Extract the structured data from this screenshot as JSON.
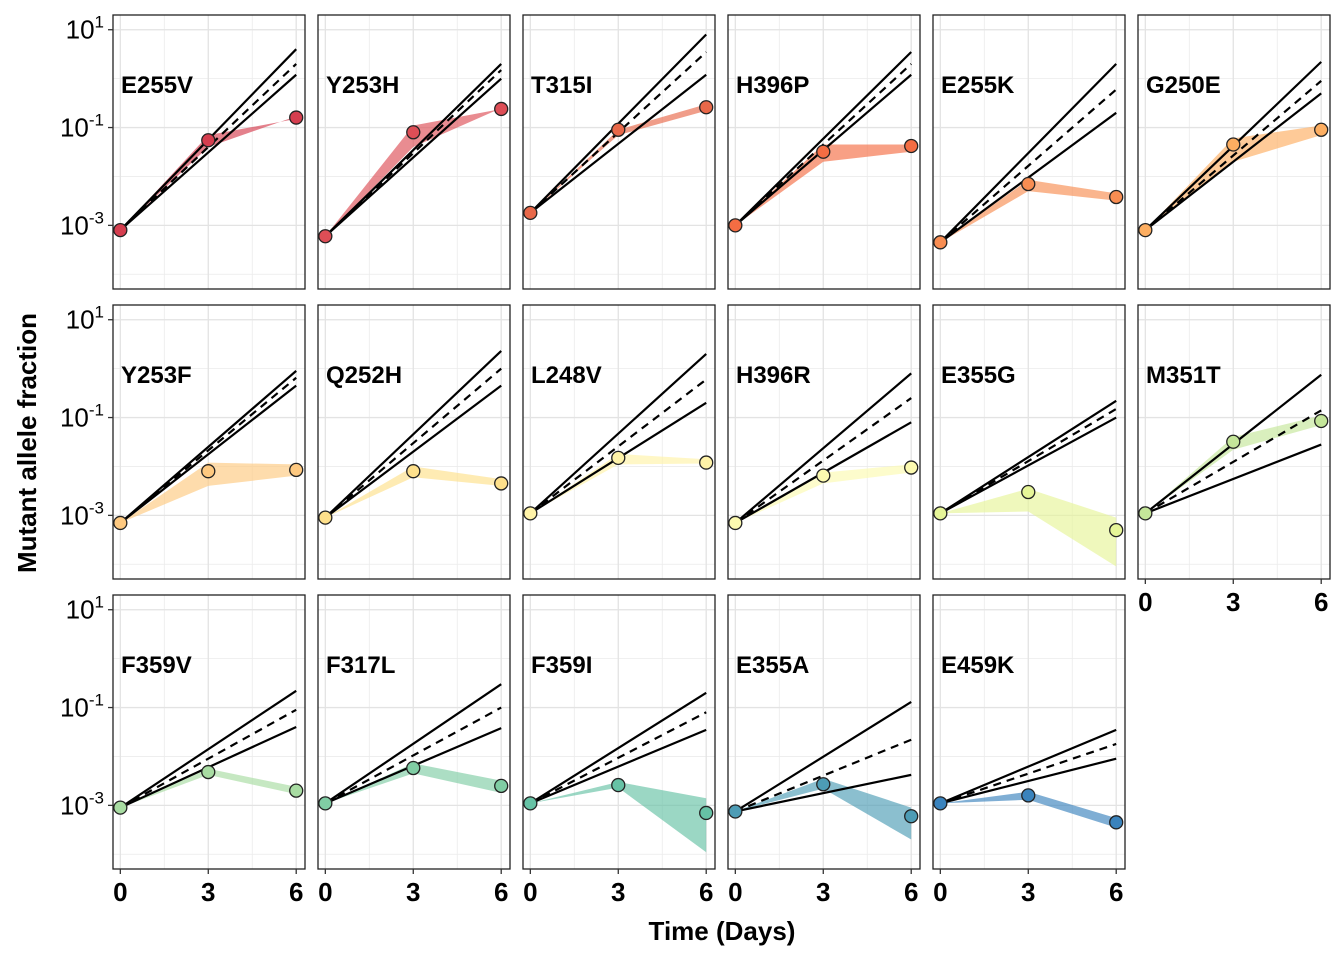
{
  "figure": {
    "ylabel": "Mutant allele fraction",
    "xlabel": "Time (Days)"
  },
  "chart_data": {
    "type": "line",
    "facet": true,
    "x_ticks": [
      0,
      3,
      6
    ],
    "y_scale": "log10",
    "y_ticks": [
      {
        "value": 0.001,
        "base": "10",
        "exp": "-3"
      },
      {
        "value": 0.1,
        "base": "10",
        "exp": "-1"
      },
      {
        "value": 10,
        "base": "10",
        "exp": "1"
      }
    ],
    "ylim": [
      5e-05,
      20
    ],
    "xlim": [
      -0.25,
      6.3
    ],
    "grid": true,
    "legend": "none",
    "panels": [
      {
        "name": "E255V",
        "color": "#d53e4f",
        "points": [
          [
            0,
            0.0008
          ],
          [
            3,
            0.055
          ],
          [
            6,
            0.16
          ]
        ],
        "band_low": [
          0.0008,
          0.04,
          0.17
        ],
        "band_high": [
          0.0008,
          0.07,
          0.15
        ],
        "lines": {
          "upper": [
            0.0008,
            4.0
          ],
          "dashed": [
            0.0008,
            2.0
          ],
          "lower": [
            0.0008,
            1.2
          ]
        }
      },
      {
        "name": "Y253H",
        "color": "#dd4e56",
        "points": [
          [
            0,
            0.0006
          ],
          [
            3,
            0.08
          ],
          [
            6,
            0.24
          ]
        ],
        "band_low": [
          0.0006,
          0.04,
          0.25
        ],
        "band_high": [
          0.0006,
          0.11,
          0.24
        ],
        "lines": {
          "upper": [
            0.0006,
            2.0
          ],
          "dashed": [
            0.0006,
            1.5
          ],
          "lower": [
            0.0006,
            1.0
          ]
        }
      },
      {
        "name": "T315I",
        "color": "#e86849",
        "points": [
          [
            0,
            0.0018
          ],
          [
            3,
            0.09
          ],
          [
            6,
            0.26
          ]
        ],
        "band_low": [
          0.0018,
          0.07,
          0.22
        ],
        "band_high": [
          0.0018,
          0.09,
          0.3
        ],
        "lines": {
          "upper": [
            0.0018,
            8.0
          ],
          "dashed": [
            0.0018,
            3.5
          ],
          "lower": [
            0.0018,
            1.2
          ]
        }
      },
      {
        "name": "H396P",
        "color": "#f46d43",
        "points": [
          [
            0,
            0.001
          ],
          [
            3,
            0.032
          ],
          [
            6,
            0.042
          ]
        ],
        "band_low": [
          0.001,
          0.02,
          0.032
        ],
        "band_high": [
          0.001,
          0.045,
          0.045
        ],
        "lines": {
          "upper": [
            0.001,
            3.5
          ],
          "dashed": [
            0.001,
            2.0
          ],
          "lower": [
            0.001,
            1.2
          ]
        }
      },
      {
        "name": "E255K",
        "color": "#f88d52",
        "points": [
          [
            0,
            0.00045
          ],
          [
            3,
            0.007
          ],
          [
            6,
            0.0038
          ]
        ],
        "band_low": [
          0.00045,
          0.005,
          0.0032
        ],
        "band_high": [
          0.00045,
          0.0085,
          0.0045
        ],
        "lines": {
          "upper": [
            0.00045,
            2.0
          ],
          "dashed": [
            0.00045,
            0.6
          ],
          "lower": [
            0.00045,
            0.2
          ]
        }
      },
      {
        "name": "G250E",
        "color": "#fdae61",
        "points": [
          [
            0,
            0.0008
          ],
          [
            3,
            0.045
          ],
          [
            6,
            0.09
          ]
        ],
        "band_low": [
          0.0008,
          0.02,
          0.07
        ],
        "band_high": [
          0.0008,
          0.06,
          0.11
        ],
        "lines": {
          "upper": [
            0.0008,
            2.2
          ],
          "dashed": [
            0.0008,
            0.9
          ],
          "lower": [
            0.0008,
            0.5
          ]
        }
      },
      {
        "name": "Y253F",
        "color": "#fec980",
        "points": [
          [
            0,
            0.0007
          ],
          [
            3,
            0.008
          ],
          [
            6,
            0.0085
          ]
        ],
        "band_low": [
          0.0007,
          0.004,
          0.0065
        ],
        "band_high": [
          0.0007,
          0.012,
          0.011
        ],
        "lines": {
          "upper": [
            0.0007,
            0.9
          ],
          "dashed": [
            0.0007,
            0.65
          ],
          "lower": [
            0.0007,
            0.45
          ]
        }
      },
      {
        "name": "Q252H",
        "color": "#fee08b",
        "points": [
          [
            0,
            0.0009
          ],
          [
            3,
            0.008
          ],
          [
            6,
            0.0045
          ]
        ],
        "band_low": [
          0.0009,
          0.006,
          0.004
        ],
        "band_high": [
          0.0009,
          0.01,
          0.0055
        ],
        "lines": {
          "upper": [
            0.0009,
            2.3
          ],
          "dashed": [
            0.0009,
            1.0
          ],
          "lower": [
            0.0009,
            0.45
          ]
        }
      },
      {
        "name": "L248V",
        "color": "#fff3a8",
        "points": [
          [
            0,
            0.0011
          ],
          [
            3,
            0.015
          ],
          [
            6,
            0.012
          ]
        ],
        "band_low": [
          0.0011,
          0.011,
          0.0115
        ],
        "band_high": [
          0.0011,
          0.018,
          0.014
        ],
        "lines": {
          "upper": [
            0.0011,
            2.0
          ],
          "dashed": [
            0.0011,
            0.6
          ],
          "lower": [
            0.0011,
            0.2
          ]
        }
      },
      {
        "name": "H396R",
        "color": "#fcfab0",
        "points": [
          [
            0,
            0.0007
          ],
          [
            3,
            0.0065
          ],
          [
            6,
            0.0095
          ]
        ],
        "band_low": [
          0.0007,
          0.0045,
          0.0075
        ],
        "band_high": [
          0.0007,
          0.0075,
          0.011
        ],
        "lines": {
          "upper": [
            0.0007,
            0.8
          ],
          "dashed": [
            0.0007,
            0.25
          ],
          "lower": [
            0.0007,
            0.08
          ]
        }
      },
      {
        "name": "E355G",
        "color": "#e6f598",
        "points": [
          [
            0,
            0.0011
          ],
          [
            3,
            0.003
          ],
          [
            6,
            0.0005
          ]
        ],
        "band_low": [
          0.0011,
          0.0012,
          9e-05
        ],
        "band_high": [
          0.0011,
          0.0035,
          0.0009
        ],
        "lines": {
          "upper": [
            0.0011,
            0.22
          ],
          "dashed": [
            0.0011,
            0.15
          ],
          "lower": [
            0.0011,
            0.1
          ]
        }
      },
      {
        "name": "M351T",
        "color": "#c4e699",
        "points": [
          [
            0,
            0.0011
          ],
          [
            3,
            0.032
          ],
          [
            6,
            0.085
          ]
        ],
        "band_low": [
          0.0011,
          0.022,
          0.07
        ],
        "band_high": [
          0.0011,
          0.04,
          0.11
        ],
        "lines": {
          "upper": [
            0.0011,
            0.75
          ],
          "dashed": [
            0.0011,
            0.14
          ],
          "lower": [
            0.0011,
            0.028
          ]
        }
      },
      {
        "name": "F359V",
        "color": "#a8dca2",
        "points": [
          [
            0,
            0.0009
          ],
          [
            3,
            0.0048
          ],
          [
            6,
            0.002
          ]
        ],
        "band_low": [
          0.0009,
          0.0042,
          0.0017
        ],
        "band_high": [
          0.0009,
          0.0056,
          0.0024
        ],
        "lines": {
          "upper": [
            0.0009,
            0.22
          ],
          "dashed": [
            0.0009,
            0.09
          ],
          "lower": [
            0.0009,
            0.04
          ]
        }
      },
      {
        "name": "F317L",
        "color": "#80cda4",
        "points": [
          [
            0,
            0.0011
          ],
          [
            3,
            0.0058
          ],
          [
            6,
            0.0025
          ]
        ],
        "band_low": [
          0.0011,
          0.0045,
          0.0018
        ],
        "band_high": [
          0.0011,
          0.0072,
          0.0032
        ],
        "lines": {
          "upper": [
            0.0011,
            0.3
          ],
          "dashed": [
            0.0011,
            0.1
          ],
          "lower": [
            0.0011,
            0.038
          ]
        }
      },
      {
        "name": "F359I",
        "color": "#66c2a5",
        "points": [
          [
            0,
            0.0011
          ],
          [
            3,
            0.0026
          ],
          [
            6,
            0.0007
          ]
        ],
        "band_low": [
          0.0011,
          0.0023,
          0.00011
        ],
        "band_high": [
          0.0011,
          0.003,
          0.0014
        ],
        "lines": {
          "upper": [
            0.0011,
            0.2
          ],
          "dashed": [
            0.0011,
            0.08
          ],
          "lower": [
            0.0011,
            0.035
          ]
        }
      },
      {
        "name": "E355A",
        "color": "#4d9cb5",
        "points": [
          [
            0,
            0.00075
          ],
          [
            3,
            0.0027
          ],
          [
            6,
            0.0006
          ]
        ],
        "band_low": [
          0.00075,
          0.0022,
          0.0002
        ],
        "band_high": [
          0.00075,
          0.0035,
          0.0009
        ],
        "lines": {
          "upper": [
            0.00075,
            0.13
          ],
          "dashed": [
            0.00075,
            0.022
          ],
          "lower": [
            0.00075,
            0.0042
          ]
        }
      },
      {
        "name": "E459K",
        "color": "#3a83bd",
        "points": [
          [
            0,
            0.0011
          ],
          [
            3,
            0.0016
          ],
          [
            6,
            0.00045
          ]
        ],
        "band_low": [
          0.0011,
          0.0013,
          0.00035
        ],
        "band_high": [
          0.0011,
          0.0019,
          0.00055
        ],
        "lines": {
          "upper": [
            0.0011,
            0.035
          ],
          "dashed": [
            0.0011,
            0.018
          ],
          "lower": [
            0.0011,
            0.009
          ]
        }
      }
    ]
  }
}
